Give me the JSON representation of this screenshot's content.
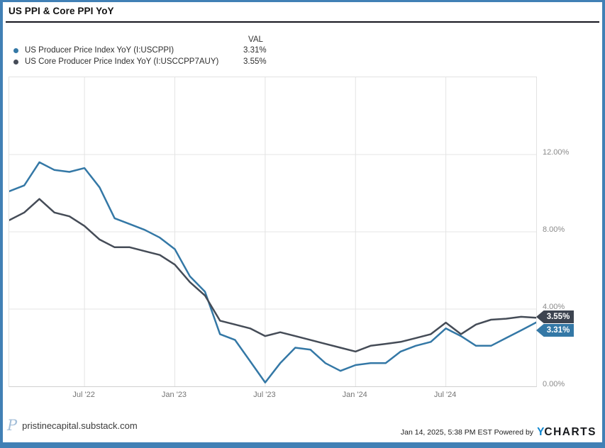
{
  "header": {
    "title": "US PPI & Core PPI YoY"
  },
  "legend": {
    "val_header": "VAL",
    "items": [
      {
        "label": "US Producer Price Index YoY (I:USCPPI)",
        "value": "3.31%",
        "color": "#3478a6"
      },
      {
        "label": "US Core Producer Price Index YoY (I:USCCPP7AUY)",
        "value": "3.55%",
        "color": "#454c57"
      }
    ]
  },
  "chart_data": {
    "type": "line",
    "title": "US PPI & Core PPI YoY",
    "x": [
      "2022-01",
      "2022-02",
      "2022-03",
      "2022-04",
      "2022-05",
      "2022-06",
      "2022-07",
      "2022-08",
      "2022-09",
      "2022-10",
      "2022-11",
      "2022-12",
      "2023-01",
      "2023-02",
      "2023-03",
      "2023-04",
      "2023-05",
      "2023-06",
      "2023-07",
      "2023-08",
      "2023-09",
      "2023-10",
      "2023-11",
      "2023-12",
      "2024-01",
      "2024-02",
      "2024-03",
      "2024-04",
      "2024-05",
      "2024-06",
      "2024-07",
      "2024-08",
      "2024-09",
      "2024-10",
      "2024-11",
      "2024-12"
    ],
    "series": [
      {
        "name": "US Producer Price Index YoY (I:USCPPI)",
        "color": "#3478a6",
        "end_label": "3.31%",
        "end_label_bg": "#3478a6",
        "values": [
          10.1,
          10.4,
          11.6,
          11.2,
          11.1,
          11.3,
          10.3,
          8.7,
          8.4,
          8.1,
          7.7,
          7.1,
          5.7,
          4.9,
          2.7,
          2.4,
          1.3,
          0.2,
          1.2,
          2.0,
          1.9,
          1.2,
          0.8,
          1.1,
          1.2,
          1.2,
          1.8,
          2.1,
          2.3,
          3.0,
          2.6,
          2.1,
          2.1,
          2.5,
          2.9,
          3.31
        ]
      },
      {
        "name": "US Core Producer Price Index YoY (I:USCCPP7AUY)",
        "color": "#454c57",
        "end_label": "3.55%",
        "end_label_bg": "#3d4450",
        "values": [
          8.6,
          9.0,
          9.7,
          9.0,
          8.8,
          8.3,
          7.6,
          7.2,
          7.2,
          7.0,
          6.8,
          6.3,
          5.4,
          4.7,
          3.4,
          3.2,
          3.0,
          2.6,
          2.8,
          2.6,
          2.4,
          2.2,
          2.0,
          1.8,
          2.1,
          2.2,
          2.3,
          2.5,
          2.7,
          3.3,
          2.7,
          3.2,
          3.45,
          3.5,
          3.6,
          3.55
        ]
      }
    ],
    "x_ticks": [
      {
        "label": "Jul '22",
        "index": 5
      },
      {
        "label": "Jan '23",
        "index": 11
      },
      {
        "label": "Jul '23",
        "index": 17
      },
      {
        "label": "Jan '24",
        "index": 23
      },
      {
        "label": "Jul '24",
        "index": 29
      }
    ],
    "y_ticks": [
      {
        "label": "0.00%",
        "value": 0
      },
      {
        "label": "4.00%",
        "value": 4
      },
      {
        "label": "8.00%",
        "value": 8
      },
      {
        "label": "12.00%",
        "value": 12
      }
    ],
    "ylim": [
      0,
      16
    ],
    "grid": true,
    "legend_position": "top"
  },
  "footer": {
    "site": "pristinecapital.substack.com",
    "logo_letter": "P",
    "timestamp": "Jan 14, 2025, 5:38 PM EST",
    "powered_by": "Powered by",
    "brand_y": "Y",
    "brand_rest": "CHARTS"
  },
  "colors": {
    "frame": "#4180b5",
    "grid": "#e4e4e4",
    "plot_border": "#e2e2e2"
  }
}
